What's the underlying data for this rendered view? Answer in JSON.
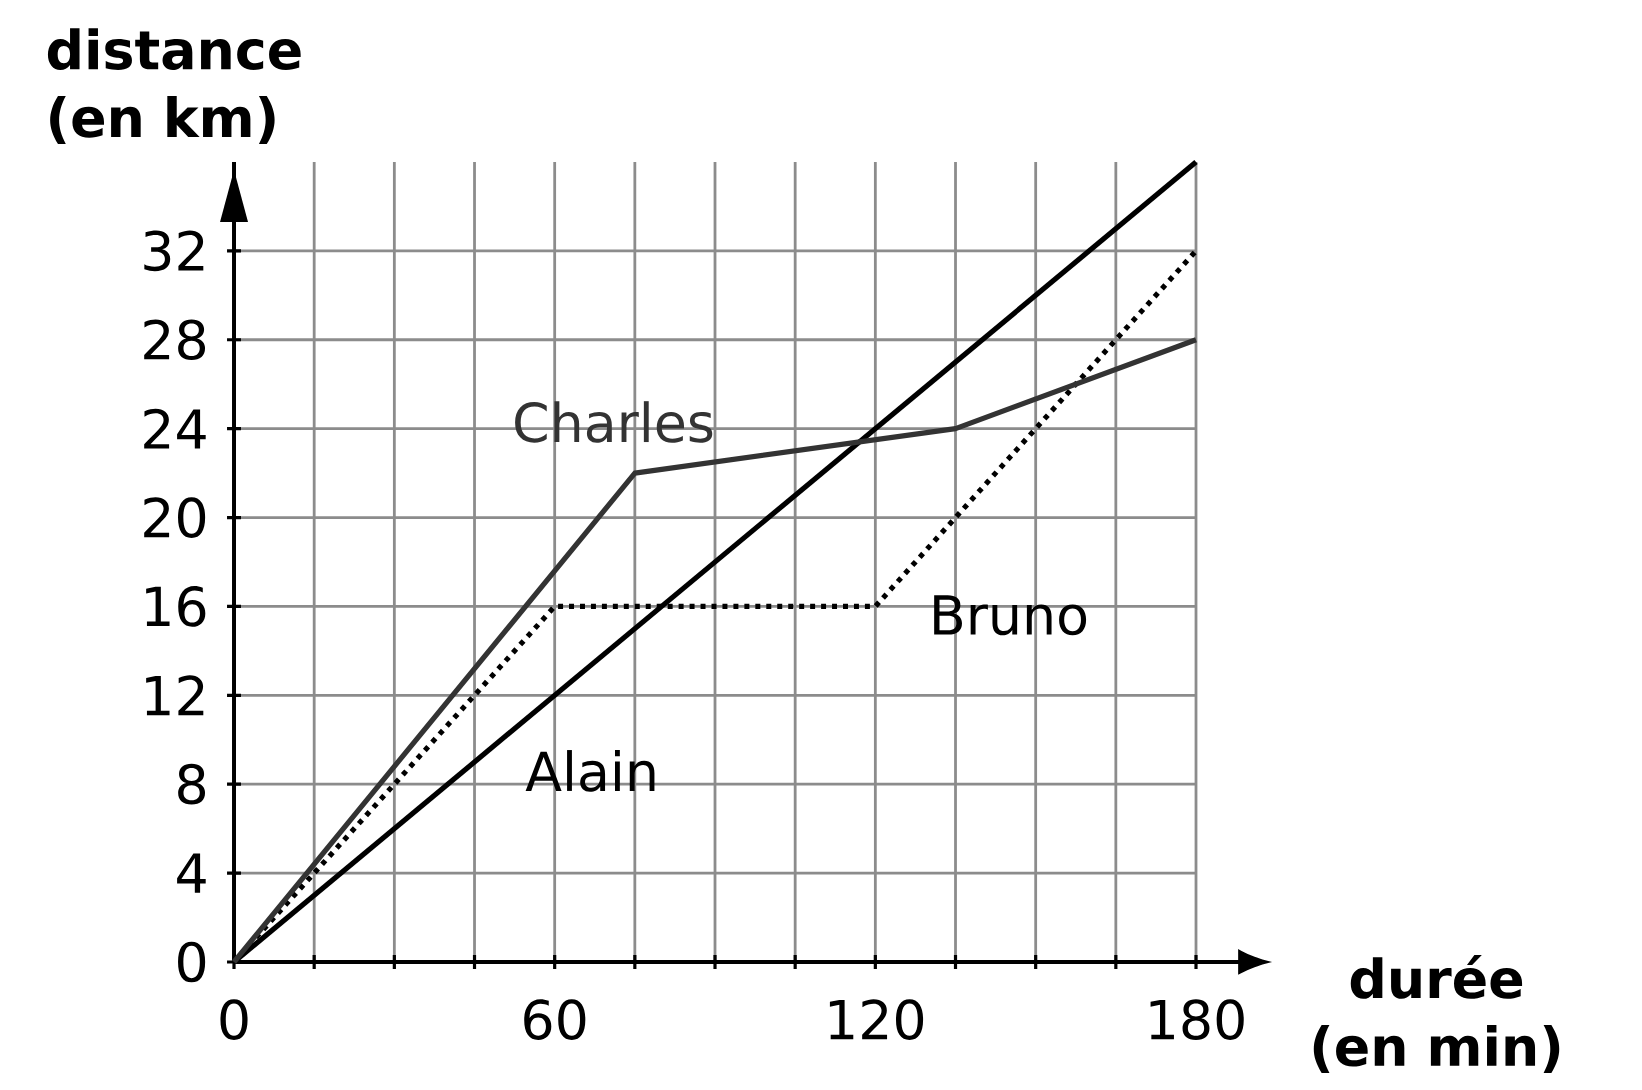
{
  "chart_data": {
    "type": "line",
    "xlabel": "durée (en min)",
    "ylabel": "distance (en km)",
    "xlim": [
      0,
      180
    ],
    "ylim": [
      0,
      36
    ],
    "xticks": [
      0,
      {
        "value": 15,
        "label": null
      },
      {
        "value": 30,
        "label": null
      },
      {
        "value": 45,
        "label": null
      },
      60,
      {
        "value": 75,
        "label": null
      },
      {
        "value": 90,
        "label": null
      },
      {
        "value": 105,
        "label": null
      },
      120,
      {
        "value": 135,
        "label": null
      },
      {
        "value": 150,
        "label": null
      },
      {
        "value": 165,
        "label": null
      },
      180
    ],
    "yticks": [
      0,
      4,
      8,
      12,
      16,
      20,
      24,
      28,
      32
    ],
    "grid": true,
    "series": [
      {
        "name": "Alain",
        "color": "#000000",
        "line_style": "solid",
        "x": [
          0,
          180
        ],
        "values": [
          0,
          36
        ]
      },
      {
        "name": "Bruno",
        "color": "#000000",
        "line_style": "dotted",
        "x": [
          0,
          60,
          120,
          180
        ],
        "values": [
          0,
          16,
          16,
          32
        ]
      },
      {
        "name": "Charles",
        "color": "#333333",
        "line_style": "solid",
        "x": [
          0,
          75,
          135,
          180
        ],
        "values": [
          0,
          22,
          24,
          28
        ]
      }
    ]
  }
}
